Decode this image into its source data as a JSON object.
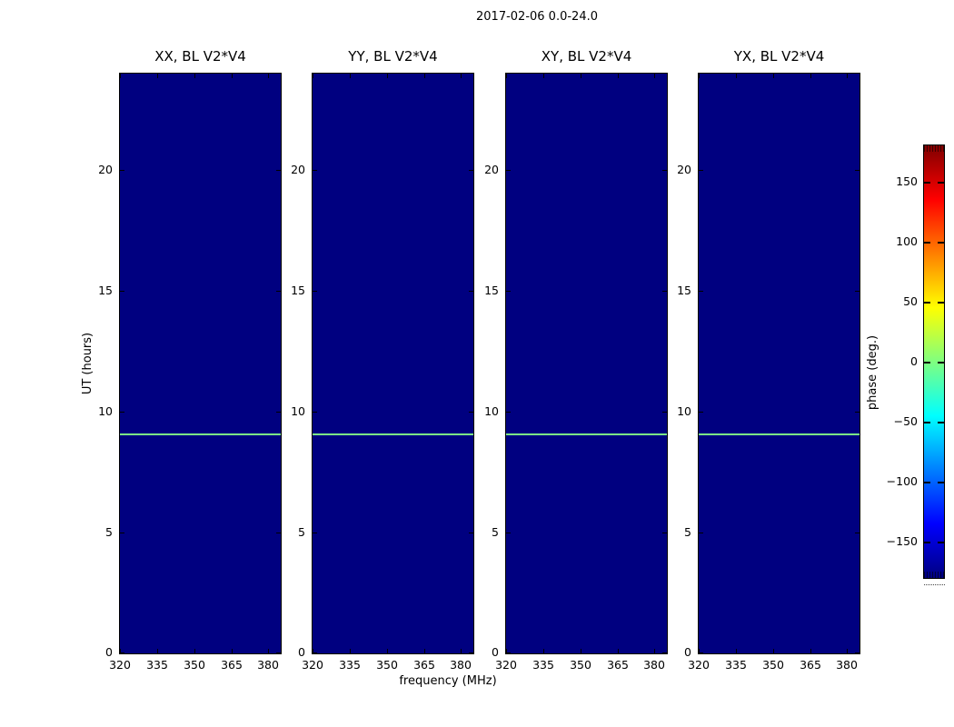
{
  "figure": {
    "title": "2017-02-06 0.0-24.0"
  },
  "axes": {
    "xlabel": "frequency (MHz)",
    "ylabel": "UT (hours)",
    "colorbar_label": "phase (deg.)"
  },
  "panels": [
    {
      "title": "XX, BL V2*V4"
    },
    {
      "title": "YY, BL V2*V4"
    },
    {
      "title": "XY, BL V2*V4"
    },
    {
      "title": "YX, BL V2*V4"
    }
  ],
  "tick_labels": {
    "x": [
      "320",
      "335",
      "350",
      "365",
      "380"
    ],
    "y": [
      "0",
      "5",
      "10",
      "15",
      "20"
    ],
    "colorbar": [
      "150",
      "100",
      "50",
      "0",
      "−50",
      "−100",
      "−150"
    ]
  },
  "colors": {
    "panel_background": "#000080",
    "zero_phase_line": "#7CEF86",
    "colormap_jet_stops_bottom_to_top": [
      "#000080",
      "#0000ff",
      "#00ffff",
      "#ffff00",
      "#ff0000",
      "#800000"
    ]
  },
  "chart_data": {
    "type": "heatmap",
    "title": "2017-02-06 0.0-24.0",
    "xlabel": "frequency (MHz)",
    "ylabel": "UT (hours)",
    "colorbar_label": "phase (deg.)",
    "colormap": "jet",
    "clim": [
      -180,
      180
    ],
    "xlim": [
      320,
      385
    ],
    "ylim": [
      0,
      24
    ],
    "xticks": [
      320,
      335,
      350,
      365,
      380
    ],
    "yticks": [
      0,
      5,
      10,
      15,
      20
    ],
    "colorbar_ticks": [
      150,
      100,
      50,
      0,
      -50,
      -100,
      -150
    ],
    "panels": [
      {
        "title": "XX, BL V2*V4",
        "background_phase_deg": -180,
        "features": [
          {
            "type": "horizontal_line",
            "ut_hours": 9.1,
            "phase_deg": 0
          }
        ]
      },
      {
        "title": "YY, BL V2*V4",
        "background_phase_deg": -180,
        "features": [
          {
            "type": "horizontal_line",
            "ut_hours": 9.1,
            "phase_deg": 0
          }
        ]
      },
      {
        "title": "XY, BL V2*V4",
        "background_phase_deg": -180,
        "features": [
          {
            "type": "horizontal_line",
            "ut_hours": 9.1,
            "phase_deg": 0
          }
        ]
      },
      {
        "title": "YX, BL V2*V4",
        "background_phase_deg": -180,
        "features": [
          {
            "type": "horizontal_line",
            "ut_hours": 9.1,
            "phase_deg": 0
          }
        ]
      }
    ]
  }
}
